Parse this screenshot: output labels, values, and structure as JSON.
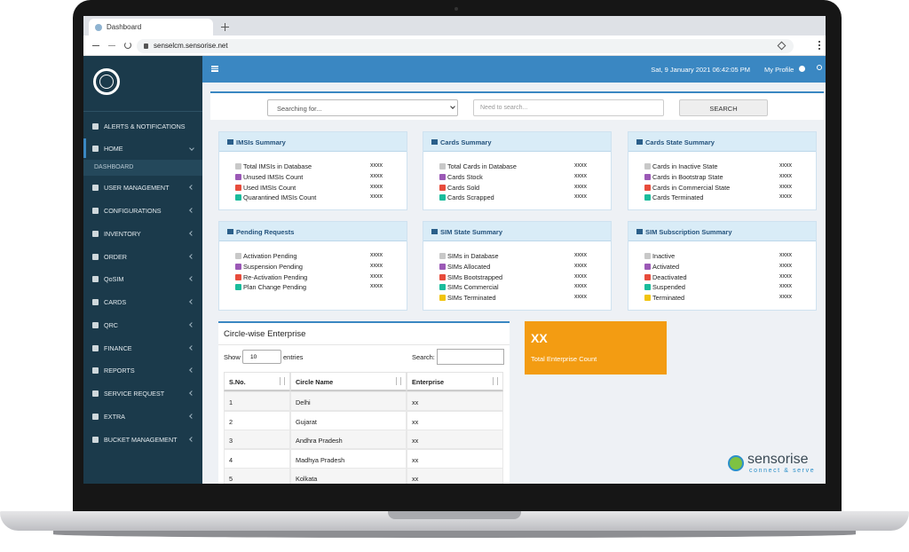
{
  "browser": {
    "tab": "Dashboard",
    "url": "senselcm.sensorise.net"
  },
  "sidebar": {
    "items": [
      "ALERTS & NOTIFICATIONS",
      "HOME",
      "DASHBOARD",
      "USER MANAGEMENT",
      "CONFIGURATIONS",
      "INVENTORY",
      "ORDER",
      "QoSIM",
      "CARDS",
      "QRC",
      "FINANCE",
      "REPORTS",
      "SERVICE REQUEST",
      "EXTRA",
      "BUCKET MANAGEMENT"
    ]
  },
  "topbar": {
    "datetime": "Sat, 9 January 2021 06:42:05 PM",
    "profile": "My Profile"
  },
  "search": {
    "select_placeholder": "Searching for...",
    "input_placeholder": "Need to search...",
    "button": "SEARCH"
  },
  "cards": [
    {
      "title": "IMSIs Summary",
      "items": [
        {
          "label": "Total IMSIs in Database",
          "value": "xxxx",
          "color": "#c8c8c8"
        },
        {
          "label": "Unused IMSIs Count",
          "value": "xxxx",
          "color": "#9b59b6"
        },
        {
          "label": "Used IMSIs Count",
          "value": "xxxx",
          "color": "#e74c3c"
        },
        {
          "label": "Quarantined IMSIs Count",
          "value": "xxxx",
          "color": "#1abc9c"
        }
      ]
    },
    {
      "title": "Cards Summary",
      "items": [
        {
          "label": "Total Cards in Database",
          "value": "xxxx",
          "color": "#c8c8c8"
        },
        {
          "label": "Cards Stock",
          "value": "xxxx",
          "color": "#9b59b6"
        },
        {
          "label": "Cards Sold",
          "value": "xxxx",
          "color": "#e74c3c"
        },
        {
          "label": "Cards Scrapped",
          "value": "xxxx",
          "color": "#1abc9c"
        }
      ]
    },
    {
      "title": "Cards State Summary",
      "items": [
        {
          "label": "Cards in Inactive State",
          "value": "xxxx",
          "color": "#c8c8c8"
        },
        {
          "label": "Cards in Bootstrap State",
          "value": "xxxx",
          "color": "#9b59b6"
        },
        {
          "label": "Cards in Commercial State",
          "value": "xxxx",
          "color": "#e74c3c"
        },
        {
          "label": "Cards Terminated",
          "value": "xxxx",
          "color": "#1abc9c"
        }
      ]
    },
    {
      "title": "Pending Requests",
      "items": [
        {
          "label": "Activation Pending",
          "value": "xxxx",
          "color": "#c8c8c8"
        },
        {
          "label": "Suspension Pending",
          "value": "xxxx",
          "color": "#9b59b6"
        },
        {
          "label": "Re-Activation Pending",
          "value": "xxxx",
          "color": "#e74c3c"
        },
        {
          "label": "Plan Change Pending",
          "value": "xxxx",
          "color": "#1abc9c"
        }
      ]
    },
    {
      "title": "SIM State Summary",
      "items": [
        {
          "label": "SIMs in Database",
          "value": "xxxx",
          "color": "#c8c8c8"
        },
        {
          "label": "SIMs Allocated",
          "value": "xxxx",
          "color": "#9b59b6"
        },
        {
          "label": "SIMs Bootstrapped",
          "value": "xxxx",
          "color": "#e74c3c"
        },
        {
          "label": "SIMs Commercial",
          "value": "xxxx",
          "color": "#1abc9c"
        },
        {
          "label": "SIMs Terminated",
          "value": "xxxx",
          "color": "#f1c40f"
        }
      ]
    },
    {
      "title": "SIM Subscription Summary",
      "items": [
        {
          "label": "Inactive",
          "value": "xxxx",
          "color": "#c8c8c8"
        },
        {
          "label": "Activated",
          "value": "xxxx",
          "color": "#9b59b6"
        },
        {
          "label": "Deactivated",
          "value": "xxxx",
          "color": "#e74c3c"
        },
        {
          "label": "Suspended",
          "value": "xxxx",
          "color": "#1abc9c"
        },
        {
          "label": "Terminated",
          "value": "xxxx",
          "color": "#f1c40f"
        }
      ]
    }
  ],
  "table": {
    "title": "Circle-wise Enterprise",
    "show": "Show",
    "page_size": "10",
    "entries": "entries",
    "search_label": "Search:",
    "columns": [
      "S.No.",
      "Circle Name",
      "Enterprise"
    ],
    "rows": [
      [
        "1",
        "Delhi",
        "xx"
      ],
      [
        "2",
        "Gujarat",
        "xx"
      ],
      [
        "3",
        "Andhra Pradesh",
        "xx"
      ],
      [
        "4",
        "Madhya Pradesh",
        "xx"
      ],
      [
        "5",
        "Kolkata",
        "xx"
      ]
    ]
  },
  "kpi": {
    "value": "XX",
    "label": "Total Enterprise Count"
  },
  "logo": {
    "name": "sensorise",
    "tagline": "connect & serve"
  }
}
